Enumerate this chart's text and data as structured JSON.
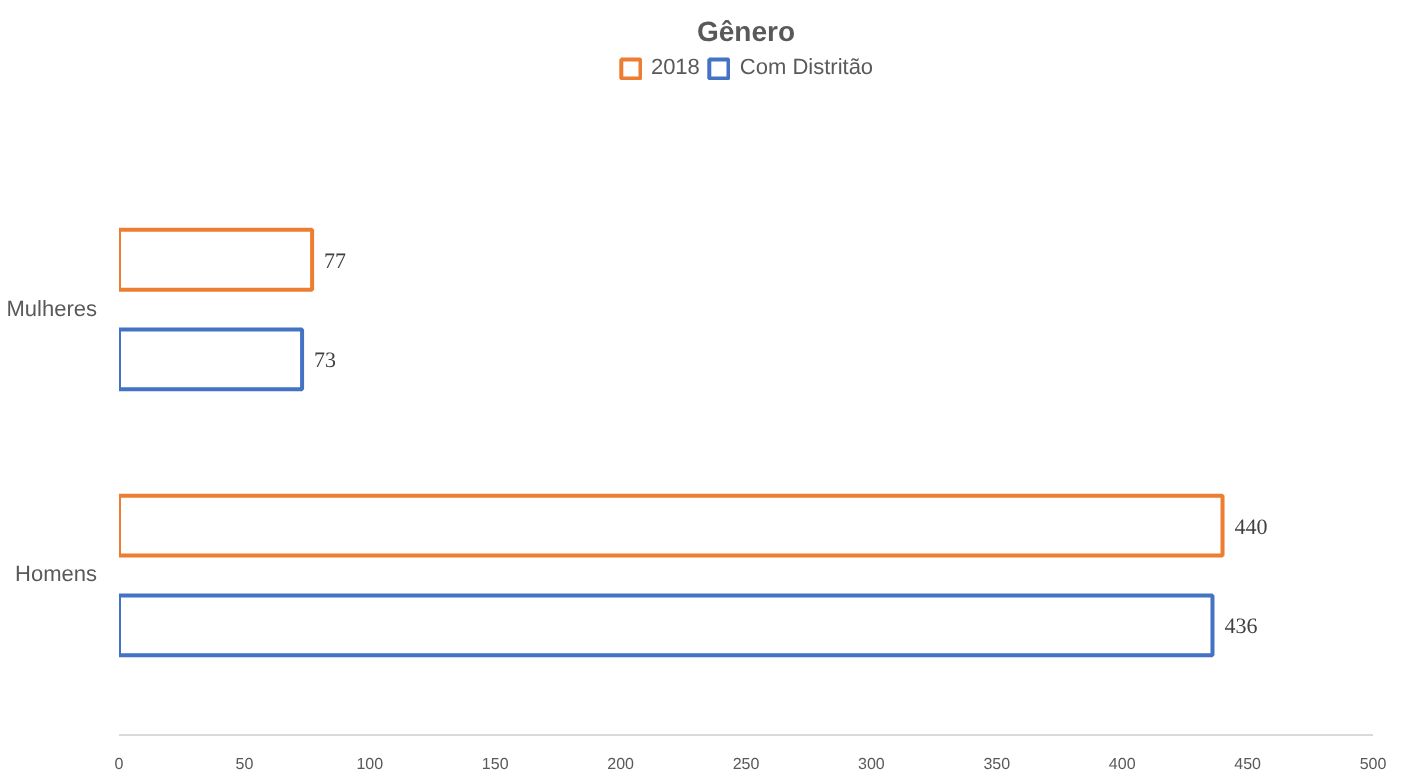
{
  "chart_data": {
    "type": "bar",
    "orientation": "horizontal",
    "title": "Gênero",
    "categories": [
      "Mulheres",
      "Homens"
    ],
    "series": [
      {
        "name": "2018",
        "color": "#ed7d31",
        "values": [
          77,
          440
        ]
      },
      {
        "name": "Com Distritão",
        "color": "#4472c4",
        "values": [
          73,
          436
        ]
      }
    ],
    "xlim": [
      0,
      500
    ],
    "xticks": [
      0,
      50,
      100,
      150,
      200,
      250,
      300,
      350,
      400,
      450,
      500
    ],
    "data_labels": true,
    "legend": "top",
    "grid": false
  }
}
